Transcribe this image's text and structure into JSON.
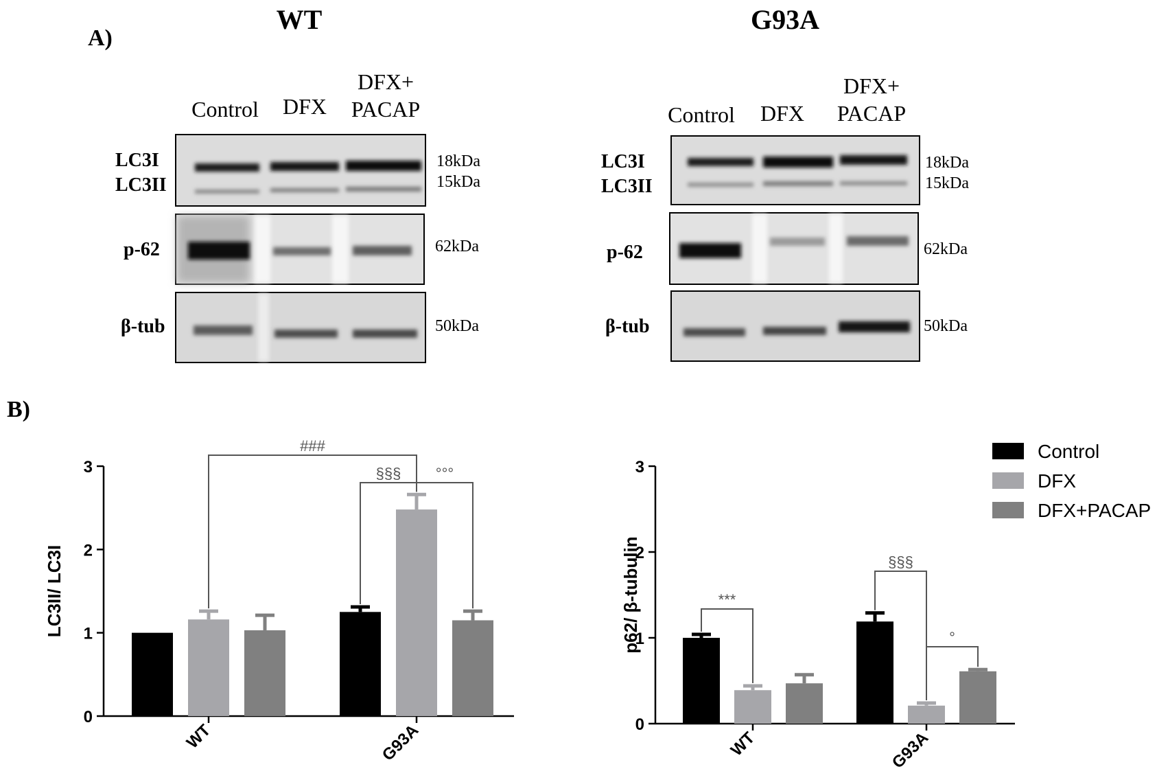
{
  "panel_labels": {
    "a": "A)",
    "b": "B)"
  },
  "blots": [
    {
      "title": "WT",
      "lanes": [
        "Control",
        "DFX",
        "DFX+",
        "PACAP"
      ],
      "rows": [
        {
          "labels": [
            "LC3I",
            "LC3II"
          ],
          "sizes": [
            "18kDa",
            "15kDa"
          ]
        },
        {
          "labels": [
            "p-62"
          ],
          "sizes": [
            "62kDa"
          ]
        },
        {
          "labels": [
            "β-tub"
          ],
          "sizes": [
            "50kDa"
          ]
        }
      ]
    },
    {
      "title": "G93A",
      "lanes": [
        "Control",
        "DFX",
        "DFX+",
        "PACAP"
      ],
      "rows": [
        {
          "labels": [
            "LC3I",
            "LC3II"
          ],
          "sizes": [
            "18kDa",
            "15kDa"
          ]
        },
        {
          "labels": [
            "p-62"
          ],
          "sizes": [
            "62kDa"
          ]
        },
        {
          "labels": [
            "β-tub"
          ],
          "sizes": [
            "50kDa"
          ]
        }
      ]
    }
  ],
  "legend": {
    "placement": "top-right",
    "entries": [
      {
        "label": "Control",
        "color": "#000000"
      },
      {
        "label": "DFX",
        "color": "#a6a6aa"
      },
      {
        "label": "DFX+PACAP",
        "color": "#808080"
      }
    ]
  },
  "chart_data": [
    {
      "type": "bar",
      "ylabel": "LC3II/ LC3I",
      "categories": [
        "WT",
        "G93A"
      ],
      "ylim": [
        0,
        3
      ],
      "yticks": [
        "0",
        "1",
        "2",
        "3"
      ],
      "series": [
        {
          "name": "Control",
          "values": [
            1.0,
            1.25
          ],
          "errors": [
            0.0,
            0.06
          ],
          "color": "#000000"
        },
        {
          "name": "DFX",
          "values": [
            1.16,
            2.48
          ],
          "errors": [
            0.1,
            0.18
          ],
          "color": "#a6a6aa"
        },
        {
          "name": "DFX+PACAP",
          "values": [
            1.03,
            1.15
          ],
          "errors": [
            0.18,
            0.11
          ],
          "color": "#808080"
        }
      ],
      "annotations": [
        {
          "text": "###",
          "from": [
            0,
            1
          ],
          "to": [
            1,
            1
          ]
        },
        {
          "text": "§§§",
          "from": [
            1,
            0
          ],
          "to": [
            1,
            1
          ]
        },
        {
          "text": "°°°",
          "from": [
            1,
            1
          ],
          "to": [
            1,
            2
          ]
        }
      ]
    },
    {
      "type": "bar",
      "ylabel": "p62/ β-tubulin",
      "categories": [
        "WT",
        "G93A"
      ],
      "ylim": [
        0,
        3
      ],
      "yticks": [
        "0",
        "1",
        "2",
        "3"
      ],
      "series": [
        {
          "name": "Control",
          "values": [
            1.0,
            1.19
          ],
          "errors": [
            0.04,
            0.1
          ],
          "color": "#000000"
        },
        {
          "name": "DFX",
          "values": [
            0.39,
            0.21
          ],
          "errors": [
            0.05,
            0.03
          ],
          "color": "#a6a6aa"
        },
        {
          "name": "DFX+PACAP",
          "values": [
            0.47,
            0.61
          ],
          "errors": [
            0.1,
            0.02
          ],
          "color": "#808080"
        }
      ],
      "annotations": [
        {
          "text": "***",
          "from": [
            0,
            0
          ],
          "to": [
            0,
            1
          ]
        },
        {
          "text": "§§§",
          "from": [
            1,
            0
          ],
          "to": [
            1,
            1
          ]
        },
        {
          "text": "°",
          "from": [
            1,
            1
          ],
          "to": [
            1,
            2
          ]
        }
      ]
    }
  ]
}
